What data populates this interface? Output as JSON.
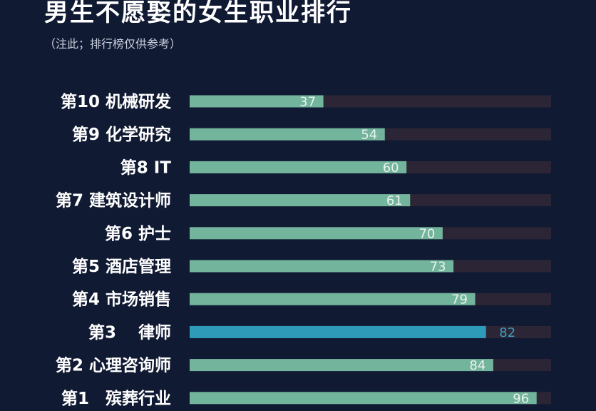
{
  "title": "男生不愿娶的女生职业排行",
  "subtitle": "（注此；排行榜仅供参考）",
  "colors": {
    "background": "#101a33",
    "bar": "#73b49c",
    "highlight_bar": "#2e9bb8",
    "highlight_label": "#3a9fc0",
    "track": "#2c2535",
    "label_on_bar": "#e9f2ee"
  },
  "chart_data": {
    "type": "bar",
    "orientation": "horizontal",
    "title": "男生不愿娶的女生职业排行",
    "subtitle": "（注此；排行榜仅供参考）",
    "xlim": [
      0,
      100
    ],
    "grid": false,
    "legend": "none",
    "categories": [
      "第10 机械研发",
      "第9 化学研究",
      "第8 IT",
      "第7 建筑设计师",
      "第6 护士",
      "第5 酒店管理",
      "第4 市场销售",
      "第3　 律师",
      "第2 心理咨询师",
      "第1　殡葬行业"
    ],
    "values": [
      37,
      54,
      60,
      61,
      70,
      73,
      79,
      82,
      84,
      96
    ],
    "highlight_index": 7
  }
}
